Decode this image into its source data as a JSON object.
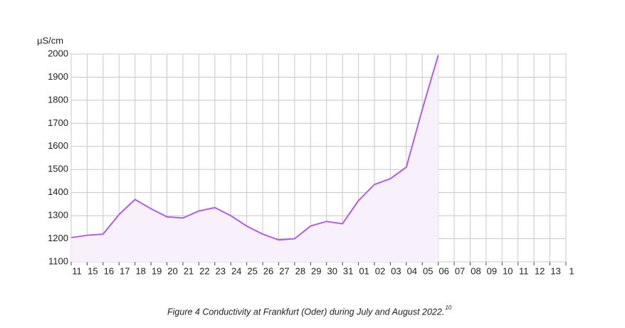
{
  "chart_data": {
    "type": "line",
    "y_label": "μS/cm",
    "caption": "Figure 4 Conductivity at Frankfurt (Oder) during July and August 2022.",
    "caption_footnote": "10",
    "categories": [
      "11",
      "15",
      "16",
      "17",
      "18",
      "19",
      "20",
      "21",
      "22",
      "23",
      "24",
      "25",
      "26",
      "27",
      "28",
      "29",
      "30",
      "31",
      "01",
      "02",
      "03",
      "04",
      "05",
      "06",
      "07",
      "08",
      "09",
      "10",
      "11",
      "12",
      "13",
      "1"
    ],
    "series": [
      {
        "color": "#b35ee0",
        "fill": "#f8f0fb",
        "values": [
          1205,
          1215,
          1220,
          1305,
          1370,
          1330,
          1295,
          1290,
          1320,
          1335,
          1300,
          1255,
          1220,
          1195,
          1200,
          1255,
          1275,
          1265,
          1365,
          1435,
          1460,
          1510,
          1760,
          1995,
          null,
          null,
          null,
          null,
          null,
          null,
          null,
          null
        ]
      }
    ],
    "ylim": [
      1100,
      2000
    ],
    "yticks": [
      1100,
      1200,
      1300,
      1400,
      1500,
      1600,
      1700,
      1800,
      1900,
      2000
    ],
    "grid": true
  }
}
